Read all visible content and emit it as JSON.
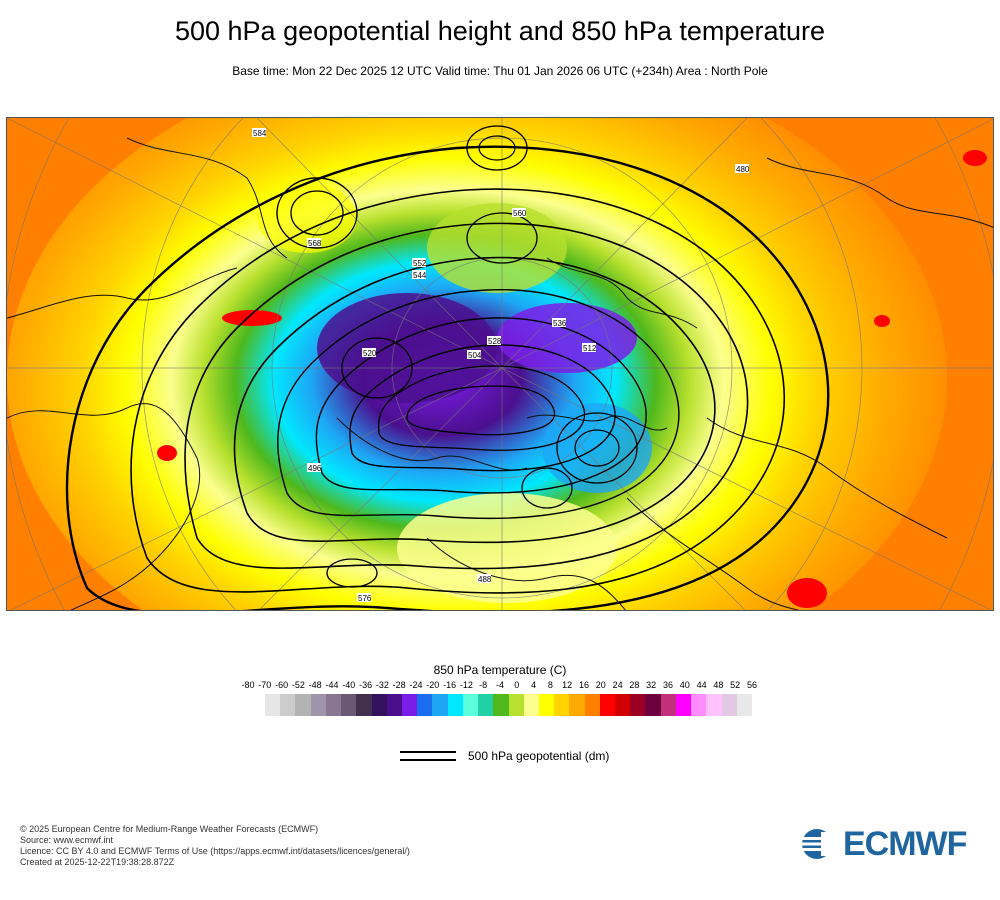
{
  "header": {
    "title": "500 hPa geopotential height and 850 hPa temperature",
    "subtitle": "Base time: Mon 22 Dec 2025 12 UTC Valid time: Thu 01 Jan 2026 06 UTC (+234h) Area : North Pole"
  },
  "map": {
    "contour_labels": [
      "584",
      "576",
      "568",
      "560",
      "552",
      "544",
      "536",
      "528",
      "520",
      "512",
      "504",
      "496",
      "488",
      "480"
    ]
  },
  "legend": {
    "title": "850 hPa temperature (C)",
    "ticks": [
      "-80",
      "-70",
      "-60",
      "-52",
      "-48",
      "-44",
      "-40",
      "-36",
      "-32",
      "-28",
      "-24",
      "-20",
      "-16",
      "-12",
      "-8",
      "-4",
      "0",
      "4",
      "8",
      "12",
      "16",
      "20",
      "24",
      "28",
      "32",
      "36",
      "40",
      "44",
      "48",
      "52",
      "56"
    ],
    "colors": [
      "#e6e6e6",
      "#cccccc",
      "#b3b3b3",
      "#a094a8",
      "#8a7592",
      "#6b5776",
      "#41314f",
      "#33115c",
      "#4b0f8e",
      "#7b1de8",
      "#1a6cf0",
      "#1ea6f5",
      "#00e8ff",
      "#5bffdc",
      "#21d0a4",
      "#4fb81c",
      "#b8e02e",
      "#fbff8e",
      "#ffff00",
      "#ffd400",
      "#ffaa00",
      "#ff7f00",
      "#ff0000",
      "#d10000",
      "#9b0024",
      "#6b003c",
      "#c2307d",
      "#ff00ff",
      "#ff8cff",
      "#ffc2ff",
      "#e2c8e2",
      "#e8e8e8"
    ],
    "geopotential_label": "500 hPa geopotential (dm)"
  },
  "footer": {
    "line1": "© 2025 European Centre for Medium-Range Weather Forecasts (ECMWF)",
    "line2": "Source: www.ecmwf.int",
    "line3": "Licence: CC BY 4.0 and ECMWF Terms of Use (https://apps.ecmwf.int/datasets/licences/general/)",
    "line4": "Created at 2025-12-22T19:38:28.872Z"
  },
  "logo": {
    "text": "ECMWF",
    "color": "#1f66a0"
  }
}
